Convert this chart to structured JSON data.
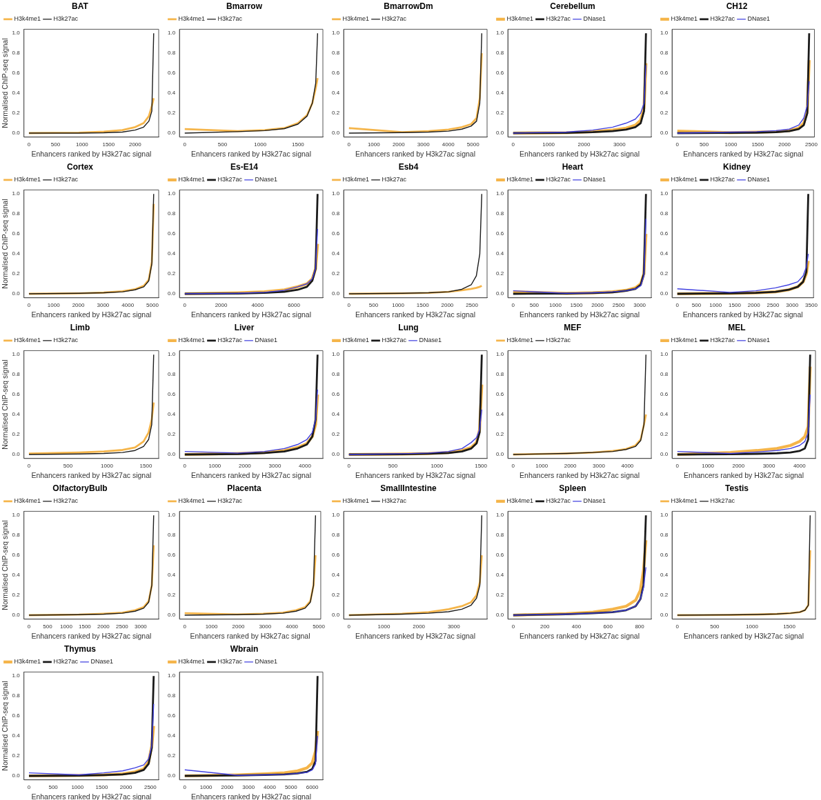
{
  "chart_data": [
    {
      "type": "line",
      "title": "BAT",
      "xlabel": "Enhancers ranked by H3k27ac signal",
      "ylabel": "Normalised ChIP-seq signal",
      "x": [
        0,
        940,
        1410,
        1760,
        2000,
        2160,
        2260,
        2315,
        2350
      ],
      "xlim": [
        -94,
        2444
      ],
      "xticks": [
        0,
        500,
        1000,
        1500,
        2000
      ],
      "ylim": [
        -0.04,
        1.04
      ],
      "yticks": [
        {
          "value": 0,
          "label": "0.0"
        },
        {
          "value": 0.2,
          "label": "0.2"
        },
        {
          "value": 0.4,
          "label": "0.4"
        },
        {
          "value": 0.6,
          "label": "0.6"
        },
        {
          "value": 0.8,
          "label": "0.8"
        },
        {
          "value": 1,
          "label": "1.0"
        }
      ],
      "legend": "top left",
      "marker": "none",
      "line_style": "solid",
      "grid": false,
      "series": [
        {
          "name": "H3k4me1",
          "color": "#f5b54a",
          "values": [
            0,
            0.005,
            0.015,
            0.03,
            0.06,
            0.1,
            0.17,
            0.27,
            0.35
          ]
        },
        {
          "name": "H3k27ac",
          "color": "#1a1a1a",
          "values": [
            0,
            0,
            0.003,
            0.01,
            0.03,
            0.06,
            0.12,
            0.22,
            1.0
          ]
        }
      ]
    },
    {
      "type": "line",
      "title": "Bmarrow",
      "xlabel": "Enhancers ranked by H3k27ac signal",
      "x": [
        0,
        700,
        1060,
        1320,
        1500,
        1620,
        1690,
        1735,
        1760
      ],
      "xlim": [
        -70,
        1830
      ],
      "xticks": [
        0,
        500,
        1000,
        1500
      ],
      "ylim": [
        -0.04,
        1.04
      ],
      "yticks": [
        {
          "value": 0,
          "label": "0.0"
        },
        {
          "value": 0.2,
          "label": "0.2"
        },
        {
          "value": 0.4,
          "label": "0.4"
        },
        {
          "value": 0.6,
          "label": "0.6"
        },
        {
          "value": 0.8,
          "label": "0.8"
        },
        {
          "value": 1,
          "label": "1.0"
        }
      ],
      "legend": "top left",
      "marker": "none",
      "line_style": "solid",
      "grid": false,
      "series": [
        {
          "name": "H3k4me1",
          "color": "#f5b54a",
          "values": [
            0.04,
            0.02,
            0.03,
            0.05,
            0.1,
            0.18,
            0.3,
            0.45,
            0.55
          ]
        },
        {
          "name": "H3k27ac",
          "color": "#1a1a1a",
          "values": [
            0,
            0.015,
            0.025,
            0.045,
            0.09,
            0.17,
            0.3,
            0.5,
            1.0
          ]
        }
      ]
    },
    {
      "type": "line",
      "title": "BmarrowDm",
      "xlabel": "Enhancers ranked by H3k27ac signal",
      "x": [
        0,
        2140,
        3210,
        4010,
        4550,
        4920,
        5140,
        5270,
        5350
      ],
      "xlim": [
        -214,
        5564
      ],
      "xticks": [
        0,
        1000,
        2000,
        3000,
        4000,
        5000
      ],
      "ylim": [
        -0.04,
        1.04
      ],
      "yticks": [
        {
          "value": 0,
          "label": "0.0"
        },
        {
          "value": 0.2,
          "label": "0.2"
        },
        {
          "value": 0.4,
          "label": "0.4"
        },
        {
          "value": 0.6,
          "label": "0.6"
        },
        {
          "value": 0.8,
          "label": "0.8"
        },
        {
          "value": 1,
          "label": "1.0"
        }
      ],
      "legend": "top left",
      "marker": "none",
      "line_style": "solid",
      "grid": false,
      "series": [
        {
          "name": "H3k4me1",
          "color": "#f5b54a",
          "values": [
            0.05,
            0.01,
            0.02,
            0.035,
            0.06,
            0.09,
            0.15,
            0.35,
            0.8
          ]
        },
        {
          "name": "H3k27ac",
          "color": "#1a1a1a",
          "values": [
            0,
            0.005,
            0.01,
            0.02,
            0.04,
            0.07,
            0.12,
            0.3,
            1.0
          ]
        }
      ]
    },
    {
      "type": "line",
      "title": "Cerebellum",
      "xlabel": "Enhancers ranked by H3k27ac signal",
      "x": [
        0,
        1500,
        2250,
        2810,
        3190,
        3450,
        3600,
        3695,
        3750
      ],
      "xlim": [
        -150,
        3900
      ],
      "xticks": [
        0,
        1000,
        2000,
        3000
      ],
      "ylim": [
        -0.04,
        1.04
      ],
      "yticks": [
        {
          "value": 0,
          "label": "0.0"
        },
        {
          "value": 0.2,
          "label": "0.2"
        },
        {
          "value": 0.4,
          "label": "0.4"
        },
        {
          "value": 0.6,
          "label": "0.6"
        },
        {
          "value": 0.8,
          "label": "0.8"
        },
        {
          "value": 1,
          "label": "1.0"
        }
      ],
      "legend": "top left",
      "marker": "none",
      "line_style": "solid",
      "grid": false,
      "series": [
        {
          "name": "H3k4me1",
          "color": "#f5b54a",
          "values": [
            0,
            0.005,
            0.015,
            0.03,
            0.05,
            0.08,
            0.13,
            0.25,
            0.7
          ]
        },
        {
          "name": "H3k27ac",
          "color": "#1a1a1a",
          "values": [
            0,
            0.003,
            0.01,
            0.02,
            0.035,
            0.06,
            0.1,
            0.22,
            1.0
          ]
        },
        {
          "name": "DNase1",
          "color": "#4040e0",
          "values": [
            0,
            0.01,
            0.03,
            0.06,
            0.1,
            0.14,
            0.2,
            0.3,
            0.68
          ]
        }
      ]
    },
    {
      "type": "line",
      "title": "CH12",
      "xlabel": "Enhancers ranked by H3k27ac signal",
      "x": [
        0,
        980,
        1480,
        1845,
        2090,
        2265,
        2360,
        2425,
        2460
      ],
      "xlim": [
        -98,
        2558
      ],
      "xticks": [
        0,
        500,
        1000,
        1500,
        2000,
        2500
      ],
      "ylim": [
        -0.04,
        1.04
      ],
      "yticks": [
        {
          "value": 0,
          "label": "0.0"
        },
        {
          "value": 0.2,
          "label": "0.2"
        },
        {
          "value": 0.4,
          "label": "0.4"
        },
        {
          "value": 0.6,
          "label": "0.6"
        },
        {
          "value": 0.8,
          "label": "0.8"
        },
        {
          "value": 1,
          "label": "1.0"
        }
      ],
      "legend": "top left",
      "marker": "none",
      "line_style": "solid",
      "grid": false,
      "series": [
        {
          "name": "H3k4me1",
          "color": "#f5b54a",
          "values": [
            0.02,
            0.005,
            0.01,
            0.015,
            0.025,
            0.05,
            0.1,
            0.22,
            0.73
          ]
        },
        {
          "name": "H3k27ac",
          "color": "#1a1a1a",
          "values": [
            0,
            0.002,
            0.005,
            0.01,
            0.02,
            0.04,
            0.08,
            0.2,
            1.0
          ]
        },
        {
          "name": "DNase1",
          "color": "#4040e0",
          "values": [
            0,
            0.01,
            0.015,
            0.025,
            0.04,
            0.08,
            0.15,
            0.28,
            0.52
          ]
        }
      ]
    },
    {
      "type": "line",
      "title": "Cortex",
      "xlabel": "Enhancers ranked by H3k27ac signal",
      "ylabel": "Normalised ChIP-seq signal",
      "x": [
        0,
        2020,
        3030,
        3790,
        4290,
        4650,
        4850,
        4975,
        5050
      ],
      "xlim": [
        -202,
        5252
      ],
      "xticks": [
        0,
        1000,
        2000,
        3000,
        4000,
        5000
      ],
      "ylim": [
        -0.04,
        1.04
      ],
      "yticks": [
        {
          "value": 0,
          "label": "0.0"
        },
        {
          "value": 0.2,
          "label": "0.2"
        },
        {
          "value": 0.4,
          "label": "0.4"
        },
        {
          "value": 0.6,
          "label": "0.6"
        },
        {
          "value": 0.8,
          "label": "0.8"
        },
        {
          "value": 1,
          "label": "1.0"
        }
      ],
      "legend": "top left",
      "marker": "none",
      "line_style": "solid",
      "grid": false,
      "series": [
        {
          "name": "H3k4me1",
          "color": "#f5b54a",
          "values": [
            0,
            0.005,
            0.012,
            0.025,
            0.045,
            0.08,
            0.14,
            0.32,
            0.9
          ]
        },
        {
          "name": "H3k27ac",
          "color": "#1a1a1a",
          "values": [
            0,
            0.005,
            0.01,
            0.02,
            0.04,
            0.07,
            0.13,
            0.3,
            1.0
          ]
        }
      ]
    },
    {
      "type": "line",
      "title": "Es-E14",
      "xlabel": "Enhancers ranked by H3k27ac signal",
      "x": [
        0,
        2920,
        4380,
        5475,
        6205,
        6715,
        7010,
        7190,
        7300
      ],
      "xlim": [
        -292,
        7592
      ],
      "xticks": [
        0,
        2000,
        4000,
        6000
      ],
      "ylim": [
        -0.04,
        1.04
      ],
      "yticks": [
        {
          "value": 0,
          "label": "0.0"
        },
        {
          "value": 0.2,
          "label": "0.2"
        },
        {
          "value": 0.4,
          "label": "0.4"
        },
        {
          "value": 0.6,
          "label": "0.6"
        },
        {
          "value": 0.8,
          "label": "0.8"
        },
        {
          "value": 1,
          "label": "1.0"
        }
      ],
      "legend": "top left",
      "marker": "none",
      "line_style": "solid",
      "grid": false,
      "series": [
        {
          "name": "H3k4me1",
          "color": "#f5b54a",
          "values": [
            0,
            0.01,
            0.02,
            0.04,
            0.07,
            0.1,
            0.15,
            0.25,
            0.5
          ]
        },
        {
          "name": "H3k27ac",
          "color": "#1a1a1a",
          "values": [
            0,
            0.003,
            0.01,
            0.02,
            0.04,
            0.07,
            0.13,
            0.25,
            1.0
          ]
        },
        {
          "name": "DNase1",
          "color": "#4040e0",
          "values": [
            0,
            0.005,
            0.015,
            0.035,
            0.07,
            0.1,
            0.15,
            0.25,
            0.65
          ]
        }
      ]
    },
    {
      "type": "line",
      "title": "Esb4",
      "xlabel": "Enhancers ranked by H3k27ac signal",
      "x": [
        0,
        1080,
        1620,
        2025,
        2295,
        2485,
        2590,
        2660,
        2700
      ],
      "xlim": [
        -108,
        2808
      ],
      "xticks": [
        0,
        500,
        1000,
        1500,
        2000,
        2500
      ],
      "ylim": [
        -0.04,
        1.04
      ],
      "yticks": [
        {
          "value": 0,
          "label": "0.0"
        },
        {
          "value": 0.2,
          "label": "0.2"
        },
        {
          "value": 0.4,
          "label": "0.4"
        },
        {
          "value": 0.6,
          "label": "0.6"
        },
        {
          "value": 0.8,
          "label": "0.8"
        },
        {
          "value": 1,
          "label": "1.0"
        }
      ],
      "legend": "top left",
      "marker": "none",
      "line_style": "solid",
      "grid": false,
      "series": [
        {
          "name": "H3k4me1",
          "color": "#f5b54a",
          "values": [
            0,
            0.005,
            0.01,
            0.02,
            0.035,
            0.05,
            0.06,
            0.07,
            0.08
          ]
        },
        {
          "name": "H3k27ac",
          "color": "#1a1a1a",
          "values": [
            0,
            0.005,
            0.01,
            0.02,
            0.045,
            0.09,
            0.18,
            0.4,
            1.0
          ]
        }
      ]
    },
    {
      "type": "line",
      "title": "Heart",
      "xlabel": "Enhancers ranked by H3k27ac signal",
      "x": [
        0,
        1260,
        1890,
        2360,
        2680,
        2900,
        3025,
        3100,
        3150
      ],
      "xlim": [
        -126,
        3276
      ],
      "xticks": [
        0,
        500,
        1000,
        1500,
        2000,
        2500,
        3000
      ],
      "ylim": [
        -0.04,
        1.04
      ],
      "yticks": [
        {
          "value": 0,
          "label": "0.0"
        },
        {
          "value": 0.2,
          "label": "0.2"
        },
        {
          "value": 0.4,
          "label": "0.4"
        },
        {
          "value": 0.6,
          "label": "0.6"
        },
        {
          "value": 0.8,
          "label": "0.8"
        },
        {
          "value": 1,
          "label": "1.0"
        }
      ],
      "legend": "top left",
      "marker": "none",
      "line_style": "solid",
      "grid": false,
      "series": [
        {
          "name": "H3k4me1",
          "color": "#f5b54a",
          "values": [
            0.02,
            0.005,
            0.01,
            0.02,
            0.035,
            0.06,
            0.1,
            0.2,
            0.6
          ]
        },
        {
          "name": "H3k27ac",
          "color": "#1a1a1a",
          "values": [
            0,
            0.003,
            0.008,
            0.015,
            0.03,
            0.05,
            0.09,
            0.2,
            1.0
          ]
        },
        {
          "name": "DNase1",
          "color": "#4040e0",
          "values": [
            0.03,
            0.005,
            0.01,
            0.02,
            0.03,
            0.05,
            0.08,
            0.18,
            0.75
          ]
        }
      ]
    },
    {
      "type": "line",
      "title": "Kidney",
      "xlabel": "Enhancers ranked by H3k27ac signal",
      "x": [
        0,
        1370,
        2050,
        2565,
        2905,
        3145,
        3285,
        3370,
        3420
      ],
      "xlim": [
        -137,
        3557
      ],
      "xticks": [
        0,
        500,
        1000,
        1500,
        2000,
        2500,
        3000,
        3500
      ],
      "ylim": [
        -0.04,
        1.04
      ],
      "yticks": [
        {
          "value": 0,
          "label": "0.0"
        },
        {
          "value": 0.2,
          "label": "0.2"
        },
        {
          "value": 0.4,
          "label": "0.4"
        },
        {
          "value": 0.6,
          "label": "0.6"
        },
        {
          "value": 0.8,
          "label": "0.8"
        },
        {
          "value": 1,
          "label": "1.0"
        }
      ],
      "legend": "top left",
      "marker": "none",
      "line_style": "solid",
      "grid": false,
      "series": [
        {
          "name": "H3k4me1",
          "color": "#f5b54a",
          "values": [
            0,
            0.005,
            0.01,
            0.02,
            0.04,
            0.07,
            0.12,
            0.2,
            0.33
          ]
        },
        {
          "name": "H3k27ac",
          "color": "#1a1a1a",
          "values": [
            0,
            0.005,
            0.01,
            0.02,
            0.04,
            0.07,
            0.12,
            0.22,
            1.0
          ]
        },
        {
          "name": "DNase1",
          "color": "#4040e0",
          "values": [
            0.05,
            0.015,
            0.03,
            0.06,
            0.09,
            0.12,
            0.18,
            0.27,
            0.4
          ]
        }
      ]
    },
    {
      "type": "line",
      "title": "Limb",
      "xlabel": "Enhancers ranked by H3k27ac signal",
      "ylabel": "Normalised ChIP-seq signal",
      "x": [
        0,
        640,
        960,
        1200,
        1360,
        1470,
        1535,
        1575,
        1600
      ],
      "xlim": [
        -64,
        1664
      ],
      "xticks": [
        0,
        500,
        1000,
        1500
      ],
      "ylim": [
        -0.04,
        1.04
      ],
      "yticks": [
        {
          "value": 0,
          "label": "0.0"
        },
        {
          "value": 0.2,
          "label": "0.2"
        },
        {
          "value": 0.4,
          "label": "0.4"
        },
        {
          "value": 0.6,
          "label": "0.6"
        },
        {
          "value": 0.8,
          "label": "0.8"
        },
        {
          "value": 1,
          "label": "1.0"
        }
      ],
      "legend": "top left",
      "marker": "none",
      "line_style": "solid",
      "grid": false,
      "series": [
        {
          "name": "H3k4me1",
          "color": "#f5b54a",
          "values": [
            0.01,
            0.02,
            0.03,
            0.045,
            0.07,
            0.13,
            0.22,
            0.35,
            0.52
          ]
        },
        {
          "name": "H3k27ac",
          "color": "#1a1a1a",
          "values": [
            0,
            0.005,
            0.01,
            0.02,
            0.04,
            0.08,
            0.15,
            0.3,
            1.0
          ]
        }
      ]
    },
    {
      "type": "line",
      "title": "Liver",
      "xlabel": "Enhancers ranked by H3k27ac signal",
      "x": [
        0,
        1770,
        2650,
        3315,
        3755,
        4065,
        4245,
        4355,
        4420
      ],
      "xlim": [
        -177,
        4597
      ],
      "xticks": [
        0,
        1000,
        2000,
        3000,
        4000
      ],
      "ylim": [
        -0.04,
        1.04
      ],
      "yticks": [
        {
          "value": 0,
          "label": "0.0"
        },
        {
          "value": 0.2,
          "label": "0.2"
        },
        {
          "value": 0.4,
          "label": "0.4"
        },
        {
          "value": 0.6,
          "label": "0.6"
        },
        {
          "value": 0.8,
          "label": "0.8"
        },
        {
          "value": 1,
          "label": "1.0"
        }
      ],
      "legend": "top left",
      "marker": "none",
      "line_style": "solid",
      "grid": false,
      "series": [
        {
          "name": "H3k4me1",
          "color": "#f5b54a",
          "values": [
            0,
            0.01,
            0.02,
            0.04,
            0.07,
            0.11,
            0.18,
            0.3,
            0.6
          ]
        },
        {
          "name": "H3k27ac",
          "color": "#1a1a1a",
          "values": [
            0,
            0.005,
            0.015,
            0.03,
            0.06,
            0.1,
            0.18,
            0.35,
            1.0
          ]
        },
        {
          "name": "DNase1",
          "color": "#4040e0",
          "values": [
            0.03,
            0.015,
            0.03,
            0.06,
            0.1,
            0.15,
            0.22,
            0.35,
            0.65
          ]
        }
      ]
    },
    {
      "type": "line",
      "title": "Lung",
      "xlabel": "Enhancers ranked by H3k27ac signal",
      "x": [
        0,
        600,
        905,
        1130,
        1285,
        1390,
        1450,
        1485,
        1510
      ],
      "xlim": [
        -60,
        1570
      ],
      "xticks": [
        0,
        500,
        1000,
        1500
      ],
      "ylim": [
        -0.04,
        1.04
      ],
      "yticks": [
        {
          "value": 0,
          "label": "0.0"
        },
        {
          "value": 0.2,
          "label": "0.2"
        },
        {
          "value": 0.4,
          "label": "0.4"
        },
        {
          "value": 0.6,
          "label": "0.6"
        },
        {
          "value": 0.8,
          "label": "0.8"
        },
        {
          "value": 1,
          "label": "1.0"
        }
      ],
      "legend": "top left",
      "marker": "none",
      "line_style": "solid",
      "grid": false,
      "series": [
        {
          "name": "H3k4me1",
          "color": "#f5b54a",
          "values": [
            0,
            0.005,
            0.01,
            0.02,
            0.04,
            0.07,
            0.12,
            0.25,
            0.7
          ]
        },
        {
          "name": "H3k27ac",
          "color": "#1a1a1a",
          "values": [
            0,
            0.003,
            0.008,
            0.015,
            0.03,
            0.06,
            0.11,
            0.22,
            1.0
          ]
        },
        {
          "name": "DNase1",
          "color": "#4040e0",
          "values": [
            0,
            0.008,
            0.015,
            0.03,
            0.06,
            0.12,
            0.17,
            0.25,
            0.45
          ]
        }
      ]
    },
    {
      "type": "line",
      "title": "MEF",
      "xlabel": "Enhancers ranked by H3k27ac signal",
      "x": [
        0,
        1860,
        2790,
        3490,
        3950,
        4280,
        4465,
        4580,
        4650
      ],
      "xlim": [
        -186,
        4836
      ],
      "xticks": [
        0,
        1000,
        2000,
        3000,
        4000
      ],
      "ylim": [
        -0.04,
        1.04
      ],
      "yticks": [
        {
          "value": 0,
          "label": "0.0"
        },
        {
          "value": 0.2,
          "label": "0.2"
        },
        {
          "value": 0.4,
          "label": "0.4"
        },
        {
          "value": 0.6,
          "label": "0.6"
        },
        {
          "value": 0.8,
          "label": "0.8"
        },
        {
          "value": 1,
          "label": "1.0"
        }
      ],
      "legend": "top left",
      "marker": "none",
      "line_style": "solid",
      "grid": false,
      "series": [
        {
          "name": "H3k4me1",
          "color": "#f5b54a",
          "values": [
            0,
            0.01,
            0.02,
            0.035,
            0.055,
            0.09,
            0.15,
            0.3,
            0.4
          ]
        },
        {
          "name": "H3k27ac",
          "color": "#1a1a1a",
          "values": [
            0,
            0.01,
            0.02,
            0.03,
            0.05,
            0.08,
            0.14,
            0.3,
            1.0
          ]
        }
      ]
    },
    {
      "type": "line",
      "title": "MEL",
      "xlabel": "Enhancers ranked by H3k27ac signal",
      "x": [
        0,
        1740,
        2610,
        3260,
        3700,
        4000,
        4175,
        4285,
        4350
      ],
      "xlim": [
        -174,
        4524
      ],
      "xticks": [
        0,
        1000,
        2000,
        3000,
        4000
      ],
      "ylim": [
        -0.04,
        1.04
      ],
      "yticks": [
        {
          "value": 0,
          "label": "0.0"
        },
        {
          "value": 0.2,
          "label": "0.2"
        },
        {
          "value": 0.4,
          "label": "0.4"
        },
        {
          "value": 0.6,
          "label": "0.6"
        },
        {
          "value": 0.8,
          "label": "0.8"
        },
        {
          "value": 1,
          "label": "1.0"
        }
      ],
      "legend": "top left",
      "marker": "none",
      "line_style": "solid",
      "grid": false,
      "series": [
        {
          "name": "H3k4me1",
          "color": "#f5b54a",
          "values": [
            0,
            0.02,
            0.04,
            0.06,
            0.09,
            0.13,
            0.18,
            0.28,
            0.88
          ]
        },
        {
          "name": "H3k27ac",
          "color": "#1a1a1a",
          "values": [
            0,
            0.003,
            0.007,
            0.012,
            0.02,
            0.035,
            0.06,
            0.15,
            1.0
          ]
        },
        {
          "name": "DNase1",
          "color": "#4040e0",
          "values": [
            0.03,
            0.01,
            0.025,
            0.04,
            0.06,
            0.09,
            0.13,
            0.22,
            0.6
          ]
        }
      ]
    },
    {
      "type": "line",
      "title": "OlfactoryBulb",
      "xlabel": "Enhancers ranked by H3k27ac signal",
      "ylabel": "Normalised ChIP-seq signal",
      "x": [
        0,
        1340,
        2010,
        2510,
        2850,
        3080,
        3215,
        3300,
        3350
      ],
      "xlim": [
        -134,
        3484
      ],
      "xticks": [
        0,
        500,
        1000,
        1500,
        2000,
        2500,
        3000
      ],
      "ylim": [
        -0.04,
        1.04
      ],
      "yticks": [
        {
          "value": 0,
          "label": "0.0"
        },
        {
          "value": 0.2,
          "label": "0.2"
        },
        {
          "value": 0.4,
          "label": "0.4"
        },
        {
          "value": 0.6,
          "label": "0.6"
        },
        {
          "value": 0.8,
          "label": "0.8"
        },
        {
          "value": 1,
          "label": "1.0"
        }
      ],
      "legend": "top left",
      "marker": "none",
      "line_style": "solid",
      "grid": false,
      "series": [
        {
          "name": "H3k4me1",
          "color": "#f5b54a",
          "values": [
            0,
            0.006,
            0.015,
            0.025,
            0.05,
            0.08,
            0.14,
            0.3,
            0.7
          ]
        },
        {
          "name": "H3k27ac",
          "color": "#1a1a1a",
          "values": [
            0,
            0.005,
            0.01,
            0.02,
            0.04,
            0.07,
            0.13,
            0.3,
            1.0
          ]
        }
      ]
    },
    {
      "type": "line",
      "title": "Placenta",
      "xlabel": "Enhancers ranked by H3k27ac signal",
      "x": [
        0,
        1950,
        2930,
        3660,
        4150,
        4490,
        4685,
        4805,
        4880
      ],
      "xlim": [
        -195,
        5075
      ],
      "xticks": [
        0,
        1000,
        2000,
        3000,
        4000,
        5000
      ],
      "ylim": [
        -0.04,
        1.04
      ],
      "yticks": [
        {
          "value": 0,
          "label": "0.0"
        },
        {
          "value": 0.2,
          "label": "0.2"
        },
        {
          "value": 0.4,
          "label": "0.4"
        },
        {
          "value": 0.6,
          "label": "0.6"
        },
        {
          "value": 0.8,
          "label": "0.8"
        },
        {
          "value": 1,
          "label": "1.0"
        }
      ],
      "legend": "top left",
      "marker": "none",
      "line_style": "solid",
      "grid": false,
      "series": [
        {
          "name": "H3k4me1",
          "color": "#f5b54a",
          "values": [
            0.02,
            0.008,
            0.015,
            0.025,
            0.05,
            0.08,
            0.14,
            0.3,
            0.6
          ]
        },
        {
          "name": "H3k27ac",
          "color": "#1a1a1a",
          "values": [
            0,
            0.005,
            0.01,
            0.02,
            0.04,
            0.07,
            0.13,
            0.3,
            1.0
          ]
        }
      ]
    },
    {
      "type": "line",
      "title": "SmallIntestine",
      "xlabel": "Enhancers ranked by H3k27ac signal",
      "x": [
        0,
        1520,
        2280,
        2850,
        3230,
        3495,
        3650,
        3745,
        3800
      ],
      "xlim": [
        -152,
        3952
      ],
      "xticks": [
        0,
        1000,
        2000,
        3000
      ],
      "ylim": [
        -0.04,
        1.04
      ],
      "yticks": [
        {
          "value": 0,
          "label": "0.0"
        },
        {
          "value": 0.2,
          "label": "0.2"
        },
        {
          "value": 0.4,
          "label": "0.4"
        },
        {
          "value": 0.6,
          "label": "0.6"
        },
        {
          "value": 0.8,
          "label": "0.8"
        },
        {
          "value": 1,
          "label": "1.0"
        }
      ],
      "legend": "top left",
      "marker": "none",
      "line_style": "solid",
      "grid": false,
      "series": [
        {
          "name": "H3k4me1",
          "color": "#f5b54a",
          "values": [
            0,
            0.015,
            0.03,
            0.06,
            0.09,
            0.13,
            0.2,
            0.33,
            0.6
          ]
        },
        {
          "name": "H3k27ac",
          "color": "#1a1a1a",
          "values": [
            0,
            0.01,
            0.02,
            0.035,
            0.06,
            0.1,
            0.17,
            0.3,
            1.0
          ]
        }
      ]
    },
    {
      "type": "line",
      "title": "Spleen",
      "xlabel": "Enhancers ranked by H3k27ac signal",
      "x": [
        0,
        335,
        505,
        630,
        715,
        775,
        805,
        825,
        840
      ],
      "xlim": [
        -34,
        874
      ],
      "xticks": [
        0,
        200,
        400,
        600,
        800
      ],
      "ylim": [
        -0.04,
        1.04
      ],
      "yticks": [
        {
          "value": 0,
          "label": "0.0"
        },
        {
          "value": 0.2,
          "label": "0.2"
        },
        {
          "value": 0.4,
          "label": "0.4"
        },
        {
          "value": 0.6,
          "label": "0.6"
        },
        {
          "value": 0.8,
          "label": "0.8"
        },
        {
          "value": 1,
          "label": "1.0"
        }
      ],
      "legend": "top left",
      "marker": "none",
      "line_style": "solid",
      "grid": false,
      "series": [
        {
          "name": "H3k4me1",
          "color": "#f5b54a",
          "values": [
            0,
            0.015,
            0.03,
            0.06,
            0.09,
            0.15,
            0.25,
            0.45,
            0.75
          ]
        },
        {
          "name": "H3k27ac",
          "color": "#1a1a1a",
          "values": [
            0,
            0.01,
            0.02,
            0.03,
            0.05,
            0.09,
            0.16,
            0.3,
            1.0
          ]
        },
        {
          "name": "DNase1",
          "color": "#4040e0",
          "values": [
            0,
            0.01,
            0.02,
            0.03,
            0.05,
            0.09,
            0.16,
            0.28,
            0.48
          ]
        }
      ]
    },
    {
      "type": "line",
      "title": "Testis",
      "xlabel": "Enhancers ranked by H3k27ac signal",
      "x": [
        0,
        710,
        1070,
        1335,
        1515,
        1640,
        1710,
        1755,
        1780
      ],
      "xlim": [
        -71,
        1851
      ],
      "xticks": [
        0,
        500,
        1000,
        1500
      ],
      "ylim": [
        -0.04,
        1.04
      ],
      "yticks": [
        {
          "value": 0,
          "label": "0.0"
        },
        {
          "value": 0.2,
          "label": "0.2"
        },
        {
          "value": 0.4,
          "label": "0.4"
        },
        {
          "value": 0.6,
          "label": "0.6"
        },
        {
          "value": 0.8,
          "label": "0.8"
        },
        {
          "value": 1,
          "label": "1.0"
        }
      ],
      "legend": "top left",
      "marker": "none",
      "line_style": "solid",
      "grid": false,
      "series": [
        {
          "name": "H3k4me1",
          "color": "#f5b54a",
          "values": [
            0,
            0.003,
            0.007,
            0.012,
            0.02,
            0.03,
            0.05,
            0.1,
            0.65
          ]
        },
        {
          "name": "H3k27ac",
          "color": "#1a1a1a",
          "values": [
            0,
            0.003,
            0.007,
            0.012,
            0.02,
            0.03,
            0.05,
            0.1,
            1.0
          ]
        }
      ]
    },
    {
      "type": "line",
      "title": "Thymus",
      "xlabel": "Enhancers ranked by H3k27ac signal",
      "ylabel": "Normalised ChIP-seq signal",
      "x": [
        0,
        1030,
        1540,
        1930,
        2185,
        2365,
        2465,
        2530,
        2570
      ],
      "xlim": [
        -103,
        2673
      ],
      "xticks": [
        0,
        500,
        1000,
        1500,
        2000,
        2500
      ],
      "ylim": [
        -0.04,
        1.04
      ],
      "yticks": [
        {
          "value": 0,
          "label": "0.0"
        },
        {
          "value": 0.2,
          "label": "0.2"
        },
        {
          "value": 0.4,
          "label": "0.4"
        },
        {
          "value": 0.6,
          "label": "0.6"
        },
        {
          "value": 0.8,
          "label": "0.8"
        },
        {
          "value": 1,
          "label": "1.0"
        }
      ],
      "legend": "top left",
      "marker": "none",
      "line_style": "solid",
      "grid": false,
      "series": [
        {
          "name": "H3k4me1",
          "color": "#f5b54a",
          "values": [
            0,
            0.005,
            0.01,
            0.02,
            0.04,
            0.07,
            0.14,
            0.3,
            0.5
          ]
        },
        {
          "name": "H3k27ac",
          "color": "#1a1a1a",
          "values": [
            0,
            0.003,
            0.008,
            0.015,
            0.03,
            0.06,
            0.12,
            0.28,
            1.0
          ]
        },
        {
          "name": "DNase1",
          "color": "#4040e0",
          "values": [
            0.03,
            0.01,
            0.03,
            0.05,
            0.08,
            0.11,
            0.17,
            0.3,
            0.72
          ]
        }
      ]
    },
    {
      "type": "line",
      "title": "Wbrain",
      "xlabel": "Enhancers ranked by H3k27ac signal",
      "x": [
        0,
        2500,
        3750,
        4690,
        5310,
        5750,
        6000,
        6155,
        6250
      ],
      "xlim": [
        -250,
        6500
      ],
      "xticks": [
        0,
        1000,
        2000,
        3000,
        4000,
        5000,
        6000
      ],
      "ylim": [
        -0.04,
        1.04
      ],
      "yticks": [
        {
          "value": 0,
          "label": "0.0"
        },
        {
          "value": 0.2,
          "label": "0.2"
        },
        {
          "value": 0.4,
          "label": "0.4"
        },
        {
          "value": 0.6,
          "label": "0.6"
        },
        {
          "value": 0.8,
          "label": "0.8"
        },
        {
          "value": 1,
          "label": "1.0"
        }
      ],
      "legend": "top left",
      "marker": "none",
      "line_style": "solid",
      "grid": false,
      "series": [
        {
          "name": "H3k4me1",
          "color": "#f5b54a",
          "values": [
            0,
            0.01,
            0.02,
            0.03,
            0.05,
            0.08,
            0.13,
            0.25,
            0.45
          ]
        },
        {
          "name": "H3k27ac",
          "color": "#1a1a1a",
          "values": [
            0,
            0.005,
            0.01,
            0.015,
            0.025,
            0.04,
            0.07,
            0.15,
            1.0
          ]
        },
        {
          "name": "DNase1",
          "color": "#4040e0",
          "values": [
            0.06,
            0.005,
            0.01,
            0.015,
            0.025,
            0.035,
            0.06,
            0.12,
            0.4
          ]
        }
      ]
    }
  ]
}
